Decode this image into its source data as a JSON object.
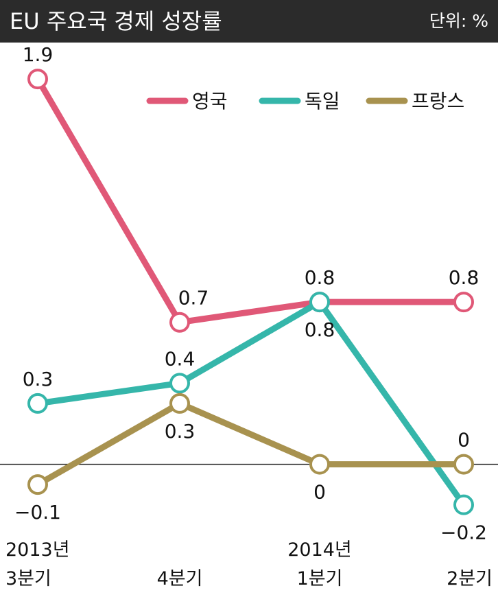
{
  "header": {
    "title": "EU 주요국 경제 성장률",
    "unit": "단위: %"
  },
  "chart_data": {
    "type": "line",
    "title": "EU 주요국 경제 성장률",
    "unit": "단위: %",
    "categories": [
      [
        "2013년",
        "3분기"
      ],
      [
        "",
        "4분기"
      ],
      [
        "2014년",
        "1분기"
      ],
      [
        "",
        "2분기"
      ]
    ],
    "ylim": [
      -0.35,
      2.1
    ],
    "zero_line": true,
    "grid": false,
    "legend_position": "top-right",
    "series": [
      {
        "name": "영국",
        "color": "#e05877",
        "values": [
          1.9,
          0.7,
          0.8,
          0.8
        ],
        "labels": [
          "1.9",
          "0.7",
          "0.8",
          "0.8"
        ]
      },
      {
        "name": "독일",
        "color": "#35b6aa",
        "values": [
          0.3,
          0.4,
          0.8,
          -0.2
        ],
        "labels": [
          "0.3",
          "0.4",
          "0.8",
          "−0.2"
        ]
      },
      {
        "name": "프랑스",
        "color": "#a8924f",
        "values": [
          -0.1,
          0.3,
          0,
          0
        ],
        "labels": [
          "−0.1",
          "0.3",
          "0",
          "0"
        ]
      }
    ]
  }
}
